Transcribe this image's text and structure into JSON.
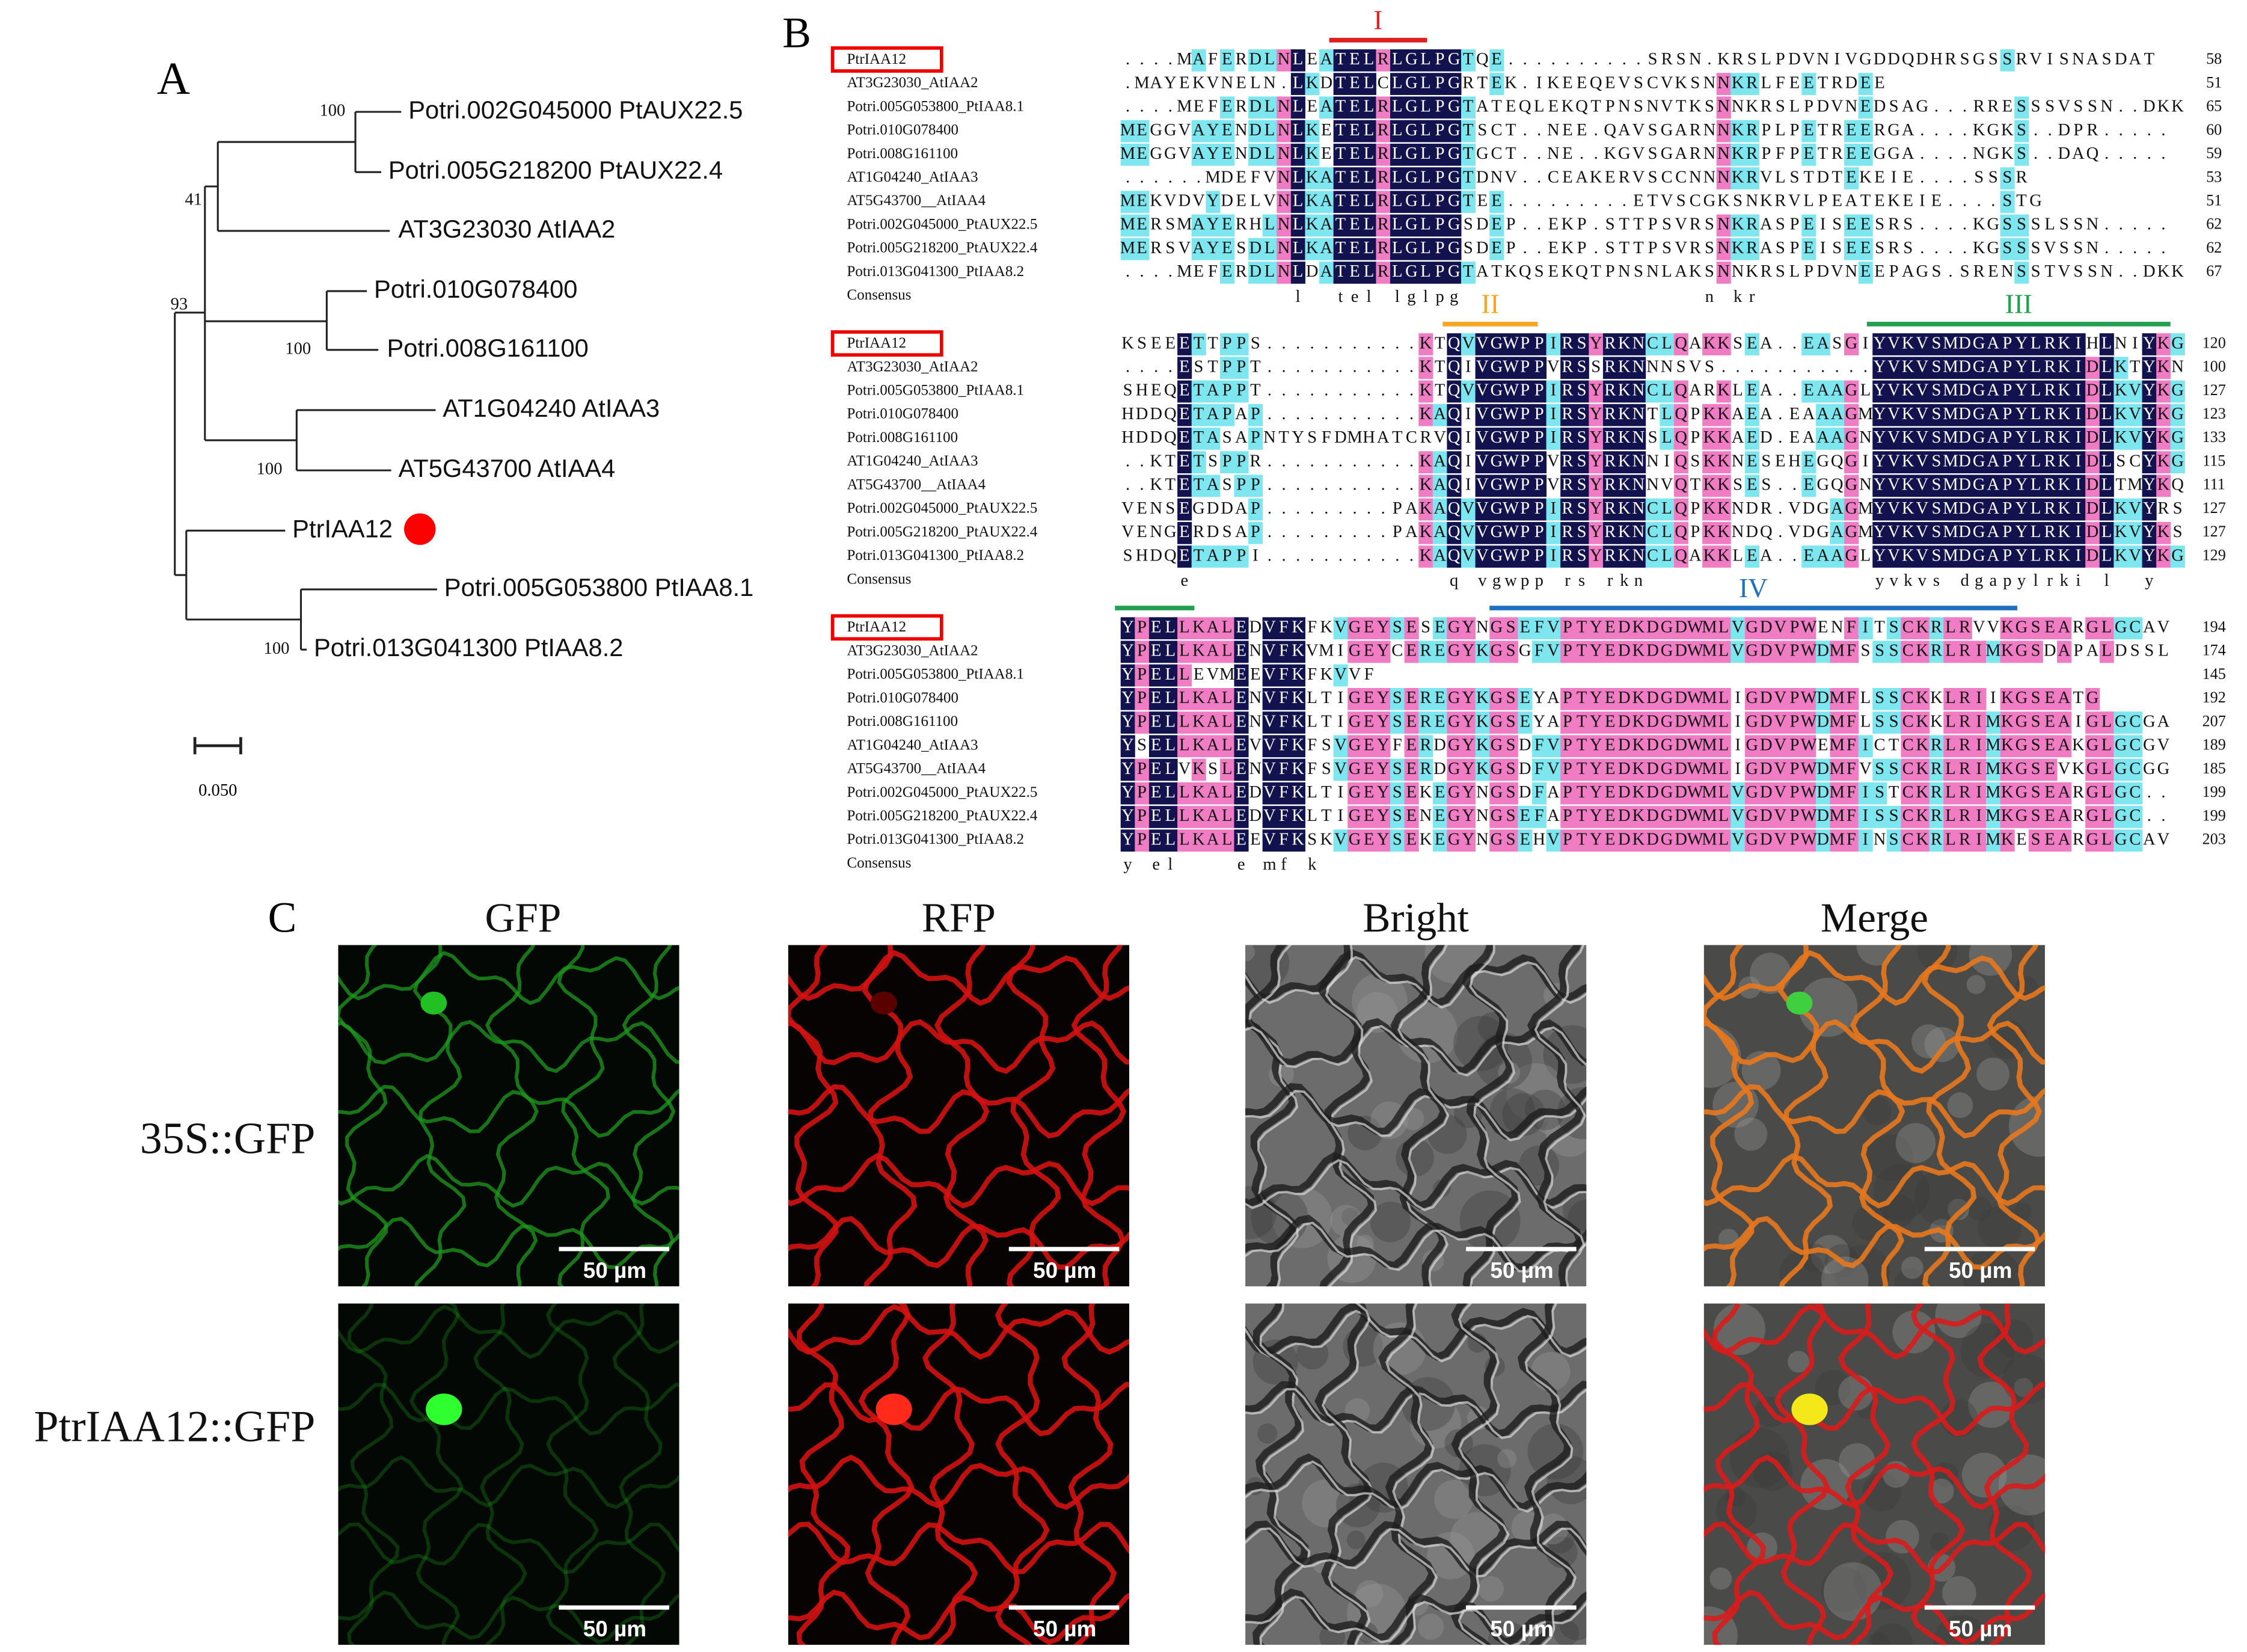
{
  "panels": {
    "a": "A",
    "b": "B",
    "c": "C"
  },
  "tree": {
    "leaves": [
      "Potri.002G045000 PtAUX22.5",
      "Potri.005G218200 PtAUX22.4",
      "AT3G23030 AtIAA2",
      "Potri.010G078400",
      "Potri.008G161100",
      "AT1G04240 AtIAA3",
      "AT5G43700 AtIAA4",
      "PtrIAA12",
      "Potri.005G053800 PtIAA8.1",
      "Potri.013G041300 PtIAA8.2"
    ],
    "bootstrap": [
      100,
      41,
      93,
      100,
      100,
      100
    ],
    "scale": "0.050"
  },
  "alignment": {
    "domains": [
      "I",
      "II",
      "III",
      "IV"
    ],
    "blocks": [
      {
        "rows": [
          {
            "name": "PtrIAA12",
            "seq": "....MAFERDLNLEATELRLGLPGTQE..........SRSN.KRSLPDVNIVGDDQDHRSGSSRVISNASDAT",
            "end": 58
          },
          {
            "name": "AT3G23030_AtIAA2",
            "seq": ".MAYEKVNELN.LKDTELCLGLPGRTEK.IKEEQEVSCVKSNNKRLFEETRDEE",
            "end": 51
          },
          {
            "name": "Potri.005G053800_PtIAA8.1",
            "seq": "....MEFERDLNLEATELRLGLPGTATEQLEKQTPNSNVTKSNNKRSLPDVNEDSAG...RRESSSVSSN..DKK",
            "end": 65
          },
          {
            "name": "Potri.010G078400",
            "seq": "MEGGVAYENDLNLKETELRLGLPGTSCT..NEE.QAVSGARNNKRPLPETREERGA....KGKS..DPR.....",
            "end": 60
          },
          {
            "name": "Potri.008G161100",
            "seq": "MEGGVAYENDLNLKETELRLGLPGTGCT..NE..KGVSGARNNKRPFPETREEGGA....NGKS..DAQ.....",
            "end": 59
          },
          {
            "name": "AT1G04240_AtIAA3",
            "seq": "......MDEFVNLKATELRLGLPGTDNV..CEAKERVSCCNNNKRVLSTDTEKEIE....SSSR",
            "end": 53
          },
          {
            "name": "AT5G43700__AtIAA4",
            "seq": "MEKVDVYDELVNLKATELRLGLPGTEE.........ETVSCGKSNKRVLPEATEKEIE....STG",
            "end": 51
          },
          {
            "name": "Potri.002G045000_PtAUX22.5",
            "seq": "MERSMAYERHLNLKATELRLGLPGSDEP..EKP.STTPSVRSNKRASPEISEESRS....KGSSSLSSN.....",
            "end": 62
          },
          {
            "name": "Potri.005G218200_PtAUX22.4",
            "seq": "MERSVAYESDLNLKATELRLGLPGSDEP..EKP.STTPSVRSNKRASPEISEESRS....KGSSSVSSN.....",
            "end": 62
          },
          {
            "name": "Potri.013G041300_PtIAA8.2",
            "seq": "....MEFERDLNLDATELRLGLPGTATKQSEKQTPNSNLAKSNNKRSLPDVNEEPAGS.SRENSSTVSSN..DKK",
            "end": 67
          }
        ],
        "consensus_name": "Consensus",
        "consensus": "            l  tel lglpg                 n kr"
      },
      {
        "rows": [
          {
            "name": "PtrIAA12",
            "seq": "KSEEETTPPS...........KTQVVGWPPIRSYRKNCLQAKKSEA..EASGIYVKVSMDGAPYLRKIHLNIYKG",
            "end": 120
          },
          {
            "name": "AT3G23030_AtIAA2",
            "seq": "....ESTPPT...........KTQIVGWPPVRSSRKNNNSVS...........YVKVSMDGAPYLRKIDLKTYKN",
            "end": 100
          },
          {
            "name": "Potri.005G053800_PtIAA8.1",
            "seq": "SHEQETAPPT...........KTQVVGWPPIRSYRKNCLQARKLEA..EAAGLYVKVSMDGAPYLRKIDLKVYKG",
            "end": 127
          },
          {
            "name": "Potri.010G078400",
            "seq": "HDDQETAPAP...........KAQIVGWPPIRSYRKNTLQPKKAEA.EAAAGMYVKVSMDGAPYLRKIDLKVYKG",
            "end": 123
          },
          {
            "name": "Potri.008G161100",
            "seq": "HDDQETASAPNTYSFDMHATCRVQIVGWPPIRSYRKNSLQPKKAED.EAAAGNYVKVSMDGAPYLRKIDLKVYKG",
            "end": 133
          },
          {
            "name": "AT1G04240_AtIAA3",
            "seq": "..KTETSPPR...........KAQIVGWPPVRSYRKNNIQSKKNESEHEGQGIYVKVSMDGAPYLRKIDLSCYKG",
            "end": 115
          },
          {
            "name": "AT5G43700__AtIAA4",
            "seq": "..KTETASPP...........KAQIVGWPPVRSYRKNNVQTKKSES..EGQGNYVKVSMDGAPYLRKIDLTMYKQ",
            "end": 111
          },
          {
            "name": "Potri.002G045000_PtAUX22.5",
            "seq": "VENSEGDDAP.........PAKAQVVGWPPIRSYRKNCLQPKKNDR.VDGAGMYVKVSMDGAPYLRKIDLKVYRS",
            "end": 127
          },
          {
            "name": "Potri.005G218200_PtAUX22.4",
            "seq": "VENGERDSAP.........PAKAQVVGWPPIRSYRKNCLQPKKNDQ.VDGAGMYVKVSMDGAPYLRKIDLKVYKS",
            "end": 127
          },
          {
            "name": "Potri.013G041300_PtIAA8.2",
            "seq": "SHDQETAPPI...........KAQVVGWPPIRSYRKNCLQAKKLEA..EAAGLYVKVSMDGAPYLRKIDLKVYKG",
            "end": 129
          }
        ],
        "consensus_name": "Consensus",
        "consensus": "    e                  q vgwpp rs rkn                yvkvs dgapylrki l  y"
      },
      {
        "rows": [
          {
            "name": "PtrIAA12",
            "seq": "YPELLKALEDVFKFKVGEYSESEGYNGSEFVPTYEDKDGDWMLVGDVPWENFITSCKRLRVVKGSEARGLGCAV",
            "end": 194
          },
          {
            "name": "AT3G23030_AtIAA2",
            "seq": "YPELLKALENVFKVMIGEYCEREGYKGSGFVPTYEDKDGDWMLVGDVPWDMFSSSCKRLRIMKGSDAPALDSSL",
            "end": 174
          },
          {
            "name": "Potri.005G053800_PtIAA8.1",
            "seq": "YPELLEVMEEVFKFKVVF",
            "end": 145
          },
          {
            "name": "Potri.010G078400",
            "seq": "YPELLKALENVFKLTIGEYSEREGYKGSEYAPTYEDKDGDWMLIGDVPWDMFLSSCKKLRIIKGSEATG",
            "end": 192
          },
          {
            "name": "Potri.008G161100",
            "seq": "YPELLKALENVFKLTIGEYSEREGYKGSEYAPTYEDKDGDWMLIGDVPWDMFLSSCKKLRIMKGSEAIGLGCGA",
            "end": 207
          },
          {
            "name": "AT1G04240_AtIAA3",
            "seq": "YSELLKALEVVFKFSVGEYFERDGYKGSDFVPTYEDKDGDWMLIGDVPWEMFICTCKRLRIMKGSEAKGLGCGV",
            "end": 189
          },
          {
            "name": "AT5G43700__AtIAA4",
            "seq": "YPELVKSLENVFKFSVGEYSERDGYKGSDFVPTYEDKDGDWMLIGDVPWDMFVSSCKRLRIMKGSEVKGLGCGG",
            "end": 185
          },
          {
            "name": "Potri.002G045000_PtAUX22.5",
            "seq": "YPELLKALEDVFKLTIGEYSEKEGYNGSDFAPTYEDKDGDWMLVGDVPWDMFISTCKRLRIMKGSEARGLGC..",
            "end": 199
          },
          {
            "name": "Potri.005G218200_PtAUX22.4",
            "seq": "YPELLKALEDVFKLTIGEYSENEGYNGSEFAPTYEDKDGDWMLVGDVPWDMFISSCKRLRIMKGSEARGLGC..",
            "end": 199
          },
          {
            "name": "Potri.013G041300_PtIAA8.2",
            "seq": "YPELLKALEEVFKSKVGEYSEKEGYNGSEHVPTYEDKDGDWMLVGDVPWDMFINSCKRLRIMKESEARGLGCAV",
            "end": 203
          }
        ],
        "consensus_name": "Consensus",
        "consensus": "y el    e mf k"
      }
    ]
  },
  "localization": {
    "columns": [
      "GFP",
      "RFP",
      "Bright",
      "Merge"
    ],
    "rows": [
      "35S::GFP",
      "PtrIAA12::GFP"
    ],
    "scale_bar": "50 µm"
  }
}
